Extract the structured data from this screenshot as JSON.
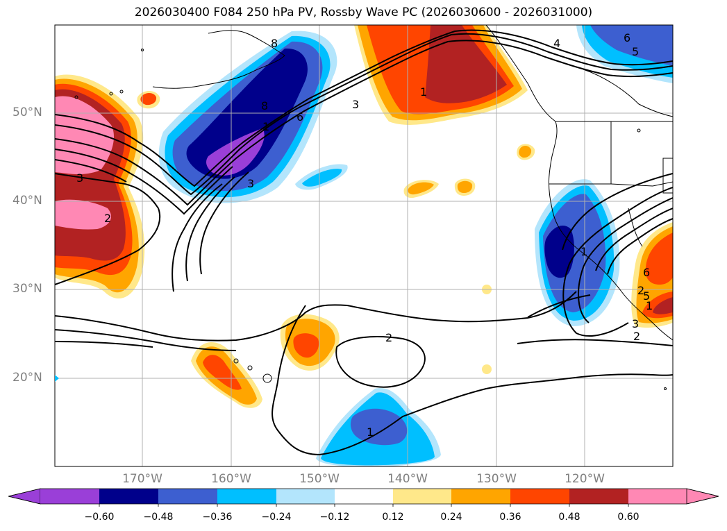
{
  "title": "2026030400 F084 250 hPa PV, Rossby Wave PC (2026030600 - 2026031000)",
  "colors": {
    "c0": "#9a3fd8",
    "c1": "#00008b",
    "c2": "#3d5fd0",
    "c3": "#00bfff",
    "c4": "#b3e5fc",
    "c5": "#ffffff",
    "c6": "#ffe88a",
    "c7": "#ffa500",
    "c8": "#ff4500",
    "c9": "#b22222",
    "c10": "#ff88b4",
    "grid": "#b0b0b0",
    "coast": "#000000",
    "axis_label": "#808080"
  },
  "map": {
    "lat_labels": [
      "50°N",
      "40°N",
      "30°N",
      "20°N"
    ],
    "lon_labels": [
      "170°W",
      "160°W",
      "150°W",
      "140°W",
      "130°W",
      "120°W"
    ],
    "contour_labels": [
      "8",
      "8",
      "1",
      "3",
      "6",
      "2",
      "3",
      "2",
      "1",
      "3",
      "4",
      "5",
      "6",
      "1",
      "2",
      "1",
      "6",
      "5",
      "3",
      "2",
      "1"
    ]
  },
  "colorbar": {
    "ticks": [
      "−0.60",
      "−0.48",
      "−0.36",
      "−0.24",
      "−0.12",
      "0.12",
      "0.24",
      "0.36",
      "0.48",
      "0.60"
    ]
  }
}
